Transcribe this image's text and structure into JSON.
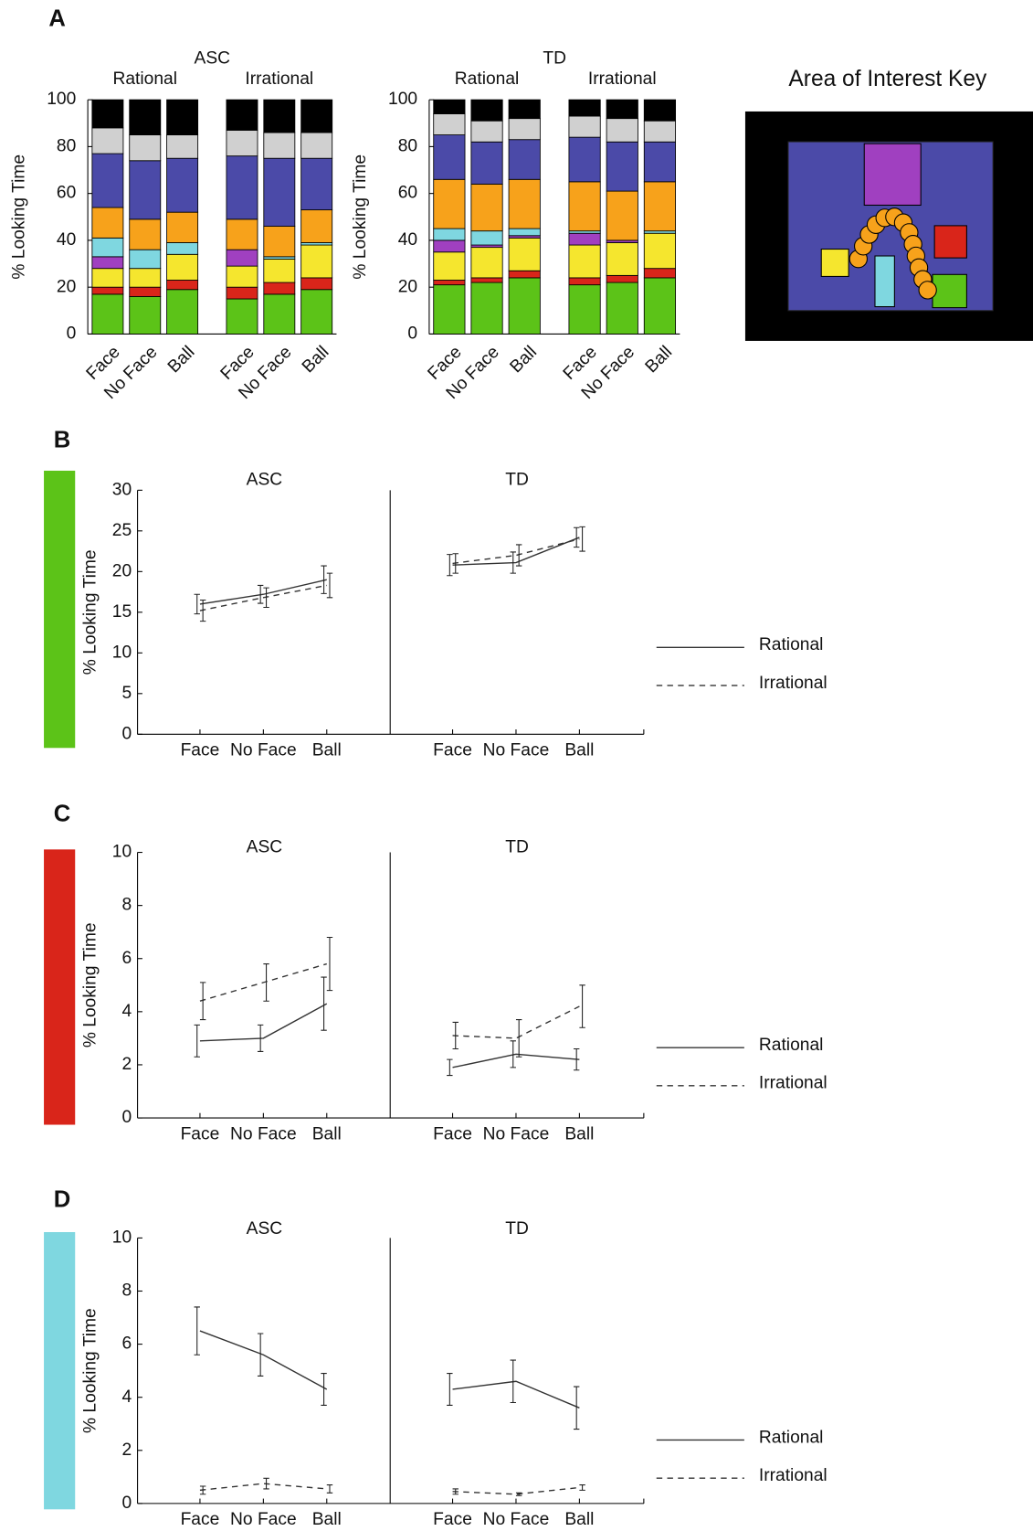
{
  "key_title": "Area of Interest Key",
  "chart_data": [
    {
      "type": "stacked-bar",
      "panel": "A",
      "ylabel": "% Looking Time",
      "facets": [
        "ASC",
        "TD"
      ],
      "subgroups": [
        "Rational",
        "Irrational",
        "Rational",
        "Irrational"
      ],
      "categories": [
        "Face",
        "No Face",
        "Ball",
        "Face",
        "No Face",
        "Ball",
        "Face",
        "No Face",
        "Ball",
        "Face",
        "No Face",
        "Ball"
      ],
      "ylim": [
        0,
        100
      ],
      "yticks": [
        0,
        20,
        40,
        60,
        80,
        100
      ],
      "series": [
        {
          "color": "#5cc318",
          "values": [
            17,
            16,
            19,
            15,
            17,
            19,
            21,
            22,
            24,
            21,
            22,
            24
          ]
        },
        {
          "color": "#d9251a",
          "values": [
            3,
            4,
            4,
            5,
            5,
            5,
            2,
            2,
            3,
            3,
            3,
            4
          ]
        },
        {
          "color": "#f5e62e",
          "values": [
            8,
            8,
            11,
            9,
            10,
            14,
            12,
            13,
            14,
            14,
            14,
            15
          ]
        },
        {
          "color": "#a040c0",
          "values": [
            5,
            0,
            0,
            7,
            0,
            0,
            5,
            1,
            1,
            5,
            1,
            0
          ]
        },
        {
          "color": "#7fd7e0",
          "values": [
            8,
            8,
            5,
            0,
            1,
            1,
            5,
            6,
            3,
            1,
            0,
            1
          ]
        },
        {
          "color": "#f7a21b",
          "values": [
            13,
            13,
            13,
            13,
            13,
            14,
            21,
            20,
            21,
            21,
            21,
            21
          ]
        },
        {
          "color": "#4b4aa8",
          "values": [
            23,
            25,
            23,
            27,
            29,
            22,
            19,
            18,
            17,
            19,
            21,
            17
          ]
        },
        {
          "color": "#d0d0d0",
          "values": [
            11,
            11,
            10,
            11,
            11,
            11,
            9,
            9,
            9,
            9,
            10,
            9
          ]
        },
        {
          "color": "#000000",
          "values": [
            12,
            15,
            15,
            13,
            14,
            14,
            6,
            9,
            8,
            7,
            8,
            9
          ]
        }
      ]
    },
    {
      "type": "line",
      "panel": "B",
      "strip_color": "#5cc318",
      "ylabel": "% Looking Time",
      "facets": [
        "ASC",
        "TD"
      ],
      "categories": [
        "Face",
        "No Face",
        "Ball",
        "Face",
        "No Face",
        "Ball"
      ],
      "ylim": [
        0,
        30
      ],
      "yticks": [
        0,
        5,
        10,
        15,
        20,
        25,
        30
      ],
      "series": [
        {
          "name": "Rational",
          "style": "solid",
          "color": "#333333",
          "values": [
            16,
            17.2,
            19,
            20.8,
            21.1,
            24.2
          ],
          "errors": [
            1.2,
            1.1,
            1.7,
            1.3,
            1.3,
            1.2
          ]
        },
        {
          "name": "Irrational",
          "style": "dashed",
          "color": "#333333",
          "values": [
            15.2,
            16.8,
            18.3,
            21,
            22,
            24
          ],
          "errors": [
            1.3,
            1.2,
            1.5,
            1.2,
            1.3,
            1.5
          ]
        }
      ]
    },
    {
      "type": "line",
      "panel": "C",
      "strip_color": "#d9251a",
      "ylabel": "% Looking Time",
      "facets": [
        "ASC",
        "TD"
      ],
      "categories": [
        "Face",
        "No Face",
        "Ball",
        "Face",
        "No Face",
        "Ball"
      ],
      "ylim": [
        0,
        10
      ],
      "yticks": [
        0,
        2,
        4,
        6,
        8,
        10
      ],
      "series": [
        {
          "name": "Rational",
          "style": "solid",
          "color": "#333333",
          "values": [
            2.9,
            3,
            4.3,
            1.9,
            2.4,
            2.2
          ],
          "errors": [
            0.6,
            0.5,
            1,
            0.3,
            0.5,
            0.4
          ]
        },
        {
          "name": "Irrational",
          "style": "dashed",
          "color": "#333333",
          "values": [
            4.4,
            5.1,
            5.8,
            3.1,
            3,
            4.2
          ],
          "errors": [
            0.7,
            0.7,
            1,
            0.5,
            0.7,
            0.8
          ]
        }
      ]
    },
    {
      "type": "line",
      "panel": "D",
      "strip_color": "#7fd7e0",
      "ylabel": "% Looking Time",
      "facets": [
        "ASC",
        "TD"
      ],
      "categories": [
        "Face",
        "No Face",
        "Ball",
        "Face",
        "No Face",
        "Ball"
      ],
      "ylim": [
        0,
        10
      ],
      "yticks": [
        0,
        2,
        4,
        6,
        8,
        10
      ],
      "series": [
        {
          "name": "Rational",
          "style": "solid",
          "color": "#333333",
          "values": [
            6.5,
            5.6,
            4.3,
            4.3,
            4.6,
            3.6
          ],
          "errors": [
            0.9,
            0.8,
            0.6,
            0.6,
            0.8,
            0.8
          ]
        },
        {
          "name": "Irrational",
          "style": "dashed",
          "color": "#333333",
          "values": [
            0.5,
            0.75,
            0.55,
            0.45,
            0.35,
            0.6
          ],
          "errors": [
            0.15,
            0.2,
            0.15,
            0.1,
            0.05,
            0.1
          ]
        }
      ]
    }
  ]
}
